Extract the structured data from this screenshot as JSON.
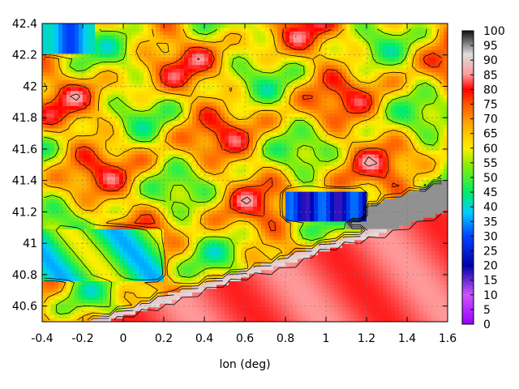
{
  "chart_data": {
    "type": "heatmap",
    "title": "",
    "xlabel": "lon (deg)",
    "ylabel": "",
    "xlim": [
      -0.4,
      1.6
    ],
    "ylim": [
      40.5,
      42.4
    ],
    "x_ticks": [
      "-0.4",
      "-0.2",
      "0",
      "0.2",
      "0.4",
      "0.6",
      "0.8",
      "1",
      "1.2",
      "1.4",
      "1.6"
    ],
    "y_ticks": [
      "40.6",
      "40.8",
      "41",
      "41.2",
      "41.4",
      "41.6",
      "41.8",
      "42",
      "42.2",
      "42.4"
    ],
    "colorbar": {
      "min": 0,
      "max": 100,
      "ticks": [
        "0",
        "5",
        "10",
        "15",
        "20",
        "25",
        "30",
        "35",
        "40",
        "45",
        "50",
        "55",
        "60",
        "65",
        "70",
        "75",
        "80",
        "85",
        "90",
        "95",
        "100"
      ],
      "stops": [
        {
          "value": 0,
          "color": "#9900ff"
        },
        {
          "value": 10,
          "color": "#cc55ff"
        },
        {
          "value": 20,
          "color": "#0000aa"
        },
        {
          "value": 30,
          "color": "#0044ff"
        },
        {
          "value": 38,
          "color": "#00ccff"
        },
        {
          "value": 45,
          "color": "#00ee66"
        },
        {
          "value": 55,
          "color": "#99ee00"
        },
        {
          "value": 60,
          "color": "#ffee00"
        },
        {
          "value": 68,
          "color": "#ffaa00"
        },
        {
          "value": 75,
          "color": "#ff5500"
        },
        {
          "value": 80,
          "color": "#ff0000"
        },
        {
          "value": 85,
          "color": "#ff9999"
        },
        {
          "value": 92,
          "color": "#dddddd"
        },
        {
          "value": 100,
          "color": "#111111"
        }
      ]
    },
    "grid": true,
    "contour_lines": true
  }
}
